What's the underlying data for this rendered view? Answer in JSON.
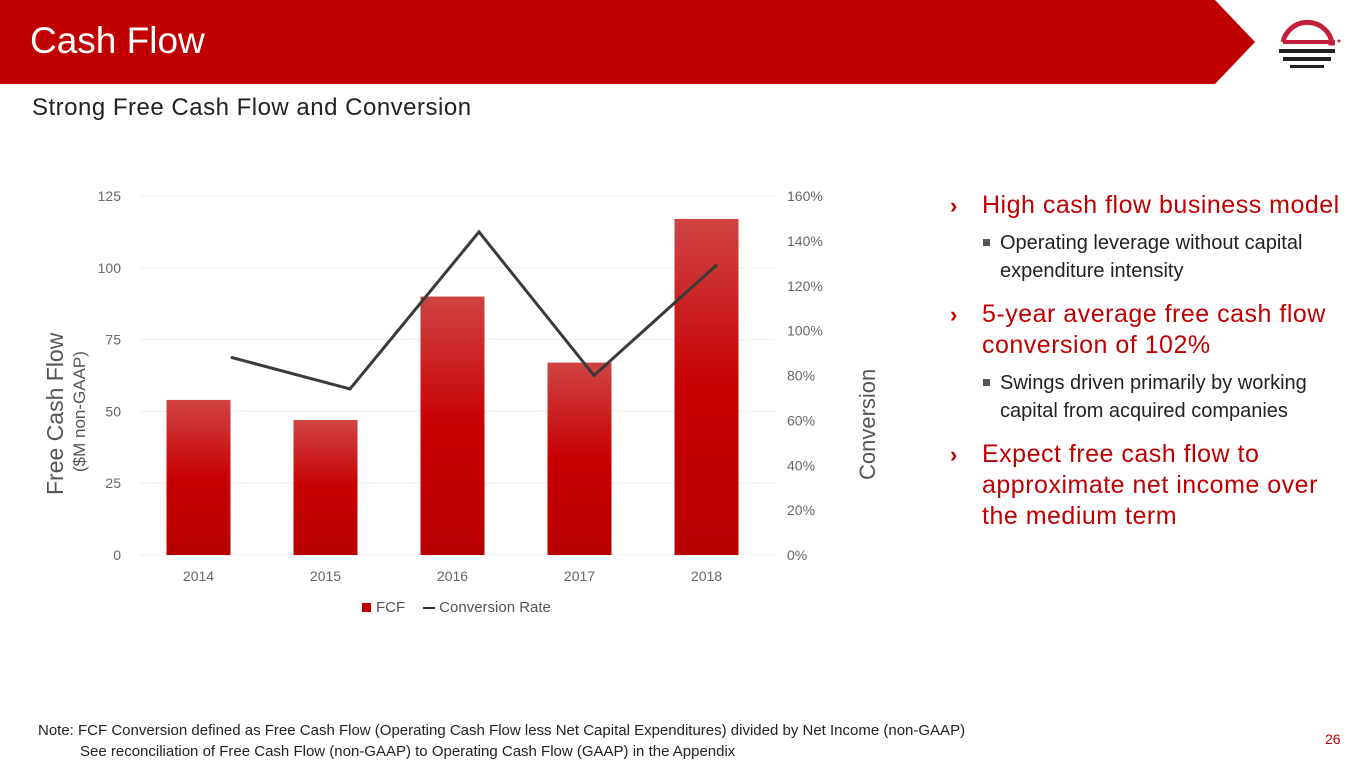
{
  "header": {
    "title": "Cash Flow",
    "subtitle": "Strong Free Cash Flow and Conversion",
    "colors": {
      "brand": "#c00000"
    }
  },
  "chart_data": {
    "type": "bar+line",
    "categories": [
      "2014",
      "2015",
      "2016",
      "2017",
      "2018"
    ],
    "series": [
      {
        "name": "FCF",
        "type": "bar",
        "axis": "left",
        "values": [
          54,
          47,
          90,
          67,
          117
        ]
      },
      {
        "name": "Conversion Rate",
        "type": "line",
        "axis": "right",
        "values": [
          88,
          74,
          144,
          80,
          129
        ]
      }
    ],
    "ylabel": "Free Cash Flow",
    "ylabel_sub": "($M non-GAAP)",
    "y2label": "Conversion",
    "ylim": [
      0,
      125
    ],
    "yticks": [
      "0",
      "25",
      "50",
      "75",
      "100",
      "125"
    ],
    "y2lim": [
      0,
      160
    ],
    "y2ticks": [
      "0%",
      "20%",
      "40%",
      "60%",
      "80%",
      "100%",
      "120%",
      "140%",
      "160%"
    ],
    "legend": [
      "FCF",
      "Conversion Rate"
    ],
    "legend_position": "bottom",
    "grid": true
  },
  "bullets": [
    {
      "heading": "High cash flow business model",
      "sub": "Operating leverage without capital expenditure intensity"
    },
    {
      "heading": "5-year average free cash flow conversion of 102%",
      "sub": "Swings driven primarily by working capital from acquired companies"
    },
    {
      "heading": "Expect free cash flow to approximate net income over the medium term"
    }
  ],
  "footer": {
    "note1": "Note: FCF Conversion defined as Free Cash Flow (Operating Cash Flow less Net Capital Expenditures) divided by Net Income (non-GAAP)",
    "note2": "See reconciliation of Free Cash Flow (non-GAAP) to Operating Cash Flow (GAAP) in the Appendix",
    "page": "26"
  }
}
